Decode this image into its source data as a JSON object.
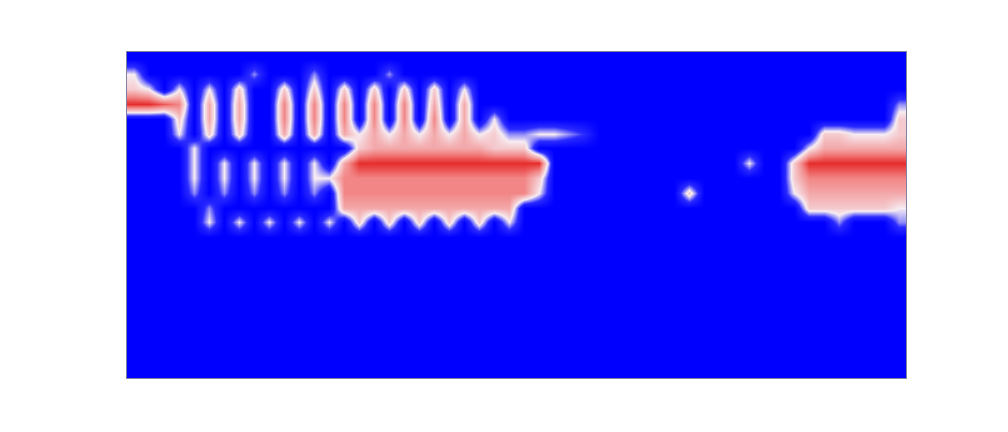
{
  "chart_data": {
    "type": "heatmap",
    "tick_labels": false,
    "grid": false,
    "color_range": [
      0,
      1
    ],
    "xlim": [
      -0.5,
      51.5
    ],
    "ylim": [
      -0.5,
      21.5
    ],
    "x": [
      0,
      1,
      2,
      3,
      4,
      5,
      6,
      7,
      8,
      9,
      10,
      11,
      12,
      13,
      14,
      15,
      16,
      17,
      18,
      19,
      20,
      21,
      22,
      23,
      24,
      25,
      26,
      27,
      28,
      29,
      30,
      31,
      32,
      33,
      34,
      35,
      36,
      37,
      38,
      39,
      40,
      41,
      42,
      43,
      44,
      45,
      46,
      47,
      48,
      49,
      50,
      51
    ],
    "y": [
      21,
      20,
      19,
      18,
      17,
      16,
      15,
      14,
      13,
      12,
      11,
      10,
      9,
      8,
      7,
      6,
      5,
      4,
      3,
      2,
      1,
      0
    ],
    "cells": [
      [
        0,
        0,
        0,
        0,
        0,
        0,
        0,
        0,
        0,
        0,
        0,
        0,
        0,
        0,
        0,
        0,
        0,
        0,
        0,
        0,
        0,
        0,
        0,
        0,
        0,
        0,
        0,
        0,
        0,
        0,
        0,
        0,
        0,
        0,
        0,
        0,
        0,
        0,
        0,
        0,
        0,
        0,
        0,
        0,
        0,
        0,
        0,
        0,
        0,
        0,
        0,
        0
      ],
      [
        0.4,
        0,
        0,
        0,
        0,
        0,
        0,
        0,
        0.3,
        0,
        0,
        0,
        0.3,
        0,
        0,
        0,
        0,
        0.3,
        0,
        0,
        0,
        0,
        0,
        0,
        0,
        0,
        0,
        0,
        0,
        0,
        0,
        0,
        0,
        0,
        0,
        0,
        0,
        0,
        0,
        0,
        0,
        0,
        0,
        0,
        0,
        0,
        0,
        0,
        0,
        0,
        0,
        0
      ],
      [
        0.5,
        0.4,
        0,
        0.4,
        0,
        0.4,
        0,
        0.5,
        0,
        0,
        0.5,
        0,
        0.5,
        0,
        0.5,
        0,
        0.5,
        0,
        0.5,
        0,
        0.5,
        0,
        0.4,
        0,
        0,
        0,
        0,
        0,
        0,
        0,
        0,
        0,
        0,
        0,
        0,
        0,
        0,
        0,
        0,
        0,
        0,
        0,
        0,
        0,
        0,
        0,
        0,
        0,
        0,
        0,
        0,
        0
      ],
      [
        0.9,
        0.9,
        0.8,
        0.7,
        0,
        0.6,
        0,
        0.6,
        0,
        0,
        0.7,
        0,
        0.7,
        0,
        0.7,
        0,
        0.7,
        0,
        0.7,
        0,
        0.6,
        0,
        0.6,
        0,
        0,
        0,
        0,
        0,
        0,
        0,
        0,
        0,
        0,
        0,
        0,
        0,
        0,
        0,
        0,
        0,
        0,
        0,
        0,
        0,
        0,
        0,
        0,
        0,
        0,
        0,
        0,
        0.3
      ],
      [
        0,
        0,
        0,
        0.5,
        0,
        0.6,
        0,
        0.6,
        0,
        0,
        0.7,
        0,
        0.7,
        0,
        0.7,
        0,
        0.7,
        0,
        0.7,
        0,
        0.7,
        0,
        0.6,
        0,
        0.4,
        0,
        0,
        0,
        0,
        0,
        0,
        0,
        0,
        0,
        0,
        0,
        0,
        0,
        0,
        0,
        0,
        0,
        0,
        0,
        0,
        0,
        0,
        0,
        0,
        0,
        0,
        0.5
      ],
      [
        0,
        0,
        0,
        0.4,
        0,
        0.5,
        0,
        0.5,
        0,
        0,
        0.6,
        0,
        0.6,
        0,
        0.6,
        0.4,
        0.6,
        0.4,
        0.6,
        0.4,
        0.6,
        0.4,
        0.6,
        0.4,
        0.5,
        0.3,
        0.3,
        0.4,
        0.4,
        0.3,
        0.2,
        0,
        0,
        0,
        0,
        0,
        0,
        0,
        0,
        0,
        0,
        0,
        0,
        0,
        0,
        0,
        0.5,
        0.5,
        0.4,
        0.4,
        0.4,
        0.5
      ],
      [
        0,
        0,
        0,
        0,
        0.4,
        0,
        0,
        0,
        0,
        0,
        0,
        0,
        0,
        0,
        0,
        0.5,
        0.6,
        0.6,
        0.6,
        0.6,
        0.6,
        0.6,
        0.6,
        0.6,
        0.5,
        0.5,
        0.5,
        0,
        0,
        0,
        0,
        0,
        0,
        0,
        0,
        0,
        0,
        0,
        0,
        0,
        0,
        0,
        0,
        0,
        0,
        0.4,
        0.6,
        0.6,
        0.6,
        0.6,
        0.6,
        0.6
      ],
      [
        0,
        0,
        0,
        0,
        0.4,
        0,
        0.4,
        0,
        0.4,
        0,
        0.4,
        0,
        0.4,
        0,
        0.6,
        0.9,
        0.9,
        0.9,
        0.9,
        0.9,
        0.9,
        0.9,
        0.9,
        0.9,
        0.9,
        0.9,
        0.9,
        0.9,
        0,
        0,
        0,
        0,
        0,
        0,
        0,
        0,
        0,
        0,
        0,
        0,
        0,
        0.4,
        0,
        0,
        0.5,
        0.9,
        0.9,
        0.9,
        0.9,
        0.9,
        0.9,
        0.9
      ],
      [
        0,
        0,
        0,
        0,
        0.4,
        0,
        0.4,
        0,
        0.4,
        0,
        0.4,
        0,
        0.4,
        0.4,
        0.7,
        0.7,
        0.7,
        0.7,
        0.7,
        0.7,
        0.7,
        0.7,
        0.7,
        0.7,
        0.7,
        0.7,
        0.7,
        0.5,
        0,
        0,
        0,
        0,
        0,
        0,
        0,
        0,
        0,
        0,
        0,
        0,
        0,
        0,
        0,
        0,
        0.5,
        0.7,
        0.7,
        0.7,
        0.7,
        0.7,
        0.7,
        0.7
      ],
      [
        0,
        0,
        0,
        0,
        0.3,
        0,
        0.3,
        0,
        0.3,
        0,
        0.3,
        0,
        0.3,
        0,
        0.7,
        0.7,
        0.7,
        0.7,
        0.7,
        0.7,
        0.7,
        0.7,
        0.7,
        0.7,
        0.7,
        0.7,
        0.7,
        0.4,
        0,
        0,
        0,
        0,
        0,
        0,
        0,
        0,
        0,
        0.5,
        0,
        0,
        0,
        0,
        0,
        0,
        0.4,
        0.6,
        0.6,
        0.6,
        0.6,
        0.6,
        0.6,
        0.6
      ],
      [
        0,
        0,
        0,
        0,
        0,
        0.3,
        0,
        0,
        0,
        0,
        0,
        0,
        0,
        0,
        0.6,
        0.6,
        0.6,
        0.6,
        0.6,
        0.6,
        0.6,
        0.6,
        0.6,
        0.6,
        0.6,
        0.6,
        0,
        0,
        0,
        0,
        0,
        0,
        0,
        0,
        0,
        0,
        0,
        0,
        0,
        0,
        0,
        0,
        0,
        0,
        0,
        0.5,
        0.5,
        0.5,
        0.5,
        0.5,
        0.5,
        0.4
      ],
      [
        0,
        0,
        0,
        0,
        0,
        0.4,
        0,
        0.4,
        0,
        0.4,
        0,
        0.4,
        0,
        0.4,
        0,
        0.5,
        0,
        0.5,
        0,
        0.5,
        0,
        0.5,
        0,
        0.5,
        0,
        0.4,
        0,
        0,
        0,
        0,
        0,
        0,
        0,
        0,
        0,
        0,
        0,
        0,
        0,
        0,
        0,
        0,
        0,
        0,
        0,
        0,
        0,
        0.3,
        0,
        0,
        0,
        0.3
      ],
      [
        0,
        0,
        0,
        0,
        0,
        0,
        0,
        0,
        0,
        0,
        0,
        0,
        0,
        0,
        0,
        0,
        0,
        0,
        0,
        0,
        0,
        0,
        0,
        0,
        0,
        0,
        0,
        0,
        0,
        0,
        0,
        0,
        0,
        0,
        0,
        0,
        0,
        0,
        0,
        0,
        0,
        0,
        0,
        0,
        0,
        0,
        0,
        0,
        0,
        0,
        0,
        0
      ],
      [
        0,
        0,
        0,
        0,
        0,
        0,
        0,
        0,
        0,
        0,
        0,
        0,
        0,
        0,
        0,
        0,
        0,
        0,
        0,
        0,
        0,
        0,
        0,
        0,
        0,
        0,
        0,
        0,
        0,
        0,
        0,
        0,
        0,
        0,
        0,
        0,
        0,
        0,
        0,
        0,
        0,
        0,
        0,
        0,
        0,
        0,
        0,
        0,
        0,
        0,
        0,
        0
      ],
      [
        0,
        0,
        0,
        0,
        0,
        0,
        0,
        0,
        0,
        0,
        0,
        0,
        0,
        0,
        0,
        0,
        0,
        0,
        0,
        0,
        0,
        0,
        0,
        0,
        0,
        0,
        0,
        0,
        0,
        0,
        0,
        0,
        0,
        0,
        0,
        0,
        0,
        0,
        0,
        0,
        0,
        0,
        0,
        0,
        0,
        0,
        0,
        0,
        0,
        0,
        0,
        0
      ],
      [
        0,
        0,
        0,
        0,
        0,
        0,
        0,
        0,
        0,
        0,
        0,
        0,
        0,
        0,
        0,
        0,
        0,
        0,
        0,
        0,
        0,
        0,
        0,
        0,
        0,
        0,
        0,
        0,
        0,
        0,
        0,
        0,
        0,
        0,
        0,
        0,
        0,
        0,
        0,
        0,
        0,
        0,
        0,
        0,
        0,
        0,
        0,
        0,
        0,
        0,
        0,
        0
      ],
      [
        0,
        0,
        0,
        0,
        0,
        0,
        0,
        0,
        0,
        0,
        0,
        0,
        0,
        0,
        0,
        0,
        0,
        0,
        0,
        0,
        0,
        0,
        0,
        0,
        0,
        0,
        0,
        0,
        0,
        0,
        0,
        0,
        0,
        0,
        0,
        0,
        0,
        0,
        0,
        0,
        0,
        0,
        0,
        0,
        0,
        0,
        0,
        0,
        0,
        0,
        0,
        0
      ],
      [
        0,
        0,
        0,
        0,
        0,
        0,
        0,
        0,
        0,
        0,
        0,
        0,
        0,
        0,
        0,
        0,
        0,
        0,
        0,
        0,
        0,
        0,
        0,
        0,
        0,
        0,
        0,
        0,
        0,
        0,
        0,
        0,
        0,
        0,
        0,
        0,
        0,
        0,
        0,
        0,
        0,
        0,
        0,
        0,
        0,
        0,
        0,
        0,
        0,
        0,
        0,
        0
      ],
      [
        0,
        0,
        0,
        0,
        0,
        0,
        0,
        0,
        0,
        0,
        0,
        0,
        0,
        0,
        0,
        0,
        0,
        0,
        0,
        0,
        0,
        0,
        0,
        0,
        0,
        0,
        0,
        0,
        0,
        0,
        0,
        0,
        0,
        0,
        0,
        0,
        0,
        0,
        0,
        0,
        0,
        0,
        0,
        0,
        0,
        0,
        0,
        0,
        0,
        0,
        0,
        0
      ],
      [
        0,
        0,
        0,
        0,
        0,
        0,
        0,
        0,
        0,
        0,
        0,
        0,
        0,
        0,
        0,
        0,
        0,
        0,
        0,
        0,
        0,
        0,
        0,
        0,
        0,
        0,
        0,
        0,
        0,
        0,
        0,
        0,
        0,
        0,
        0,
        0,
        0,
        0,
        0,
        0,
        0,
        0,
        0,
        0,
        0,
        0,
        0,
        0,
        0,
        0,
        0,
        0
      ],
      [
        0,
        0,
        0,
        0,
        0,
        0,
        0,
        0,
        0,
        0,
        0,
        0,
        0,
        0,
        0,
        0,
        0,
        0,
        0,
        0,
        0,
        0,
        0,
        0,
        0,
        0,
        0,
        0,
        0,
        0,
        0,
        0,
        0,
        0,
        0,
        0,
        0,
        0,
        0,
        0,
        0,
        0,
        0,
        0,
        0,
        0,
        0,
        0,
        0,
        0,
        0,
        0
      ],
      [
        0,
        0,
        0,
        0,
        0,
        0,
        0,
        0,
        0,
        0,
        0,
        0,
        0,
        0,
        0,
        0,
        0,
        0,
        0,
        0,
        0,
        0,
        0,
        0,
        0,
        0,
        0,
        0,
        0,
        0,
        0,
        0,
        0,
        0,
        0,
        0,
        0,
        0,
        0,
        0,
        0,
        0,
        0,
        0,
        0,
        0,
        0,
        0,
        0,
        0,
        0,
        0
      ]
    ]
  }
}
